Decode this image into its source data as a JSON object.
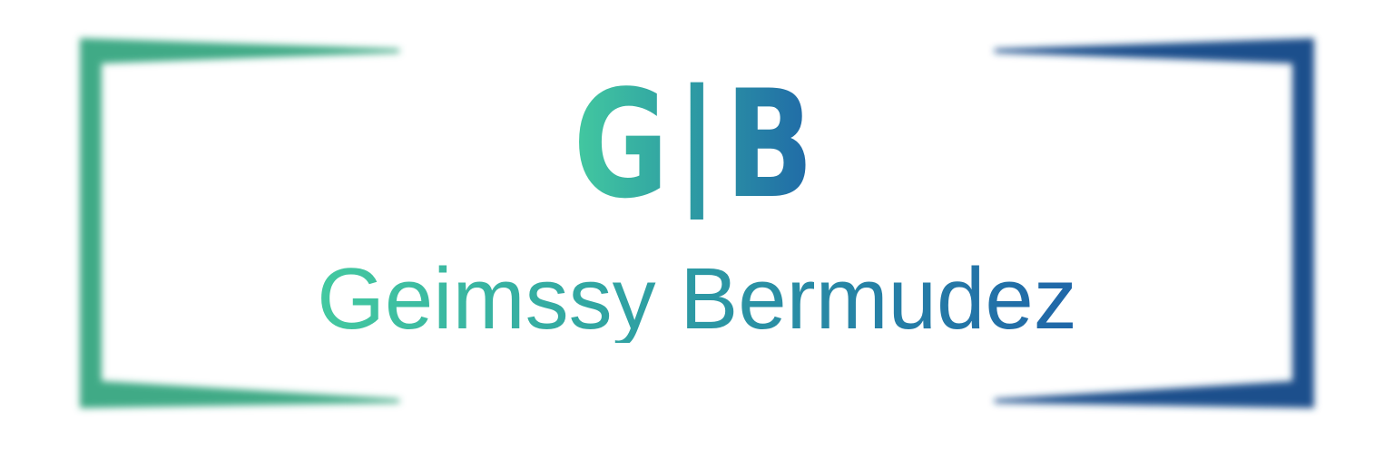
{
  "logo": {
    "monogram": "G|B",
    "name": "Geimssy Bermudez",
    "colors": {
      "start": "#43c9a0",
      "middle": "#2e9ea3",
      "end": "#1f66a8",
      "frame_left": "#3faa86",
      "frame_right": "#1d4f8c",
      "background": "#ffffff"
    }
  }
}
